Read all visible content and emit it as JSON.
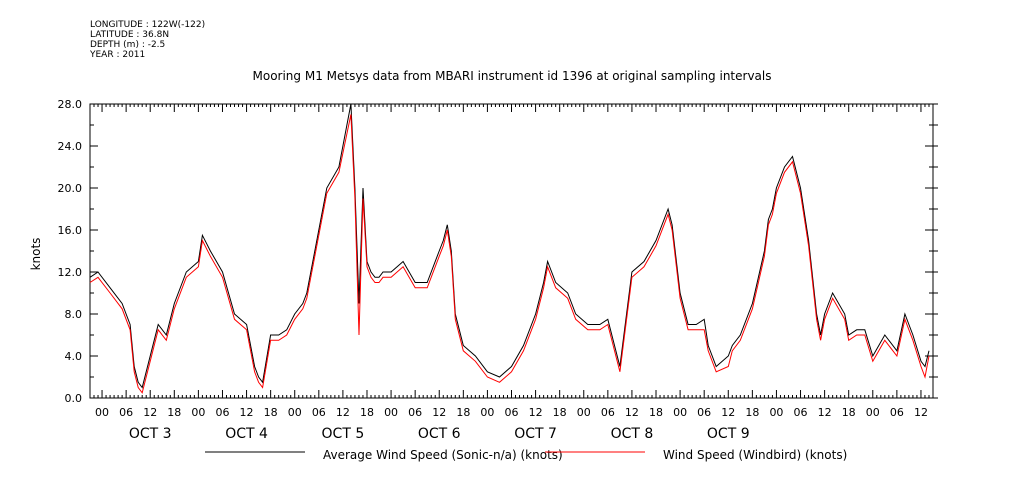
{
  "meta": {
    "longitude": "LONGITUDE : 122W(-122)",
    "latitude": "LATITUDE : 36.8N",
    "depth": "DEPTH (m) : -2.5",
    "year": "YEAR : 2011"
  },
  "chart_data": {
    "type": "line",
    "title": "Mooring M1 Metsys data from MBARI instrument id 1396 at original sampling intervals",
    "ylabel": "knots",
    "xlabel": "",
    "ylim": [
      0,
      28
    ],
    "xlim_hours": [
      -3,
      207
    ],
    "yticks": [
      "0.0",
      "4.0",
      "8.0",
      "12.0",
      "16.0",
      "20.0",
      "24.0",
      "28.0"
    ],
    "hour_ticks": [
      "00",
      "06",
      "12",
      "18"
    ],
    "days": [
      "OCT 3",
      "OCT 4",
      "OCT 5",
      "OCT 6",
      "OCT 7",
      "OCT 8",
      "OCT 9"
    ],
    "x_unit": "hours since OCT 3 00:00",
    "series": [
      {
        "name": "Average Wind Speed (Sonic-n/a) (knots)",
        "color": "#000000",
        "x": [
          -3,
          -1,
          2,
          5,
          7,
          8,
          9,
          10,
          11,
          12,
          14,
          16,
          18,
          21,
          24,
          25,
          27,
          30,
          33,
          36,
          38,
          39,
          40,
          42,
          44,
          46,
          48,
          50,
          51,
          54,
          56,
          59,
          62,
          63,
          64,
          65,
          66,
          67,
          68,
          69,
          70,
          72,
          75,
          78,
          81,
          84,
          85,
          86,
          87,
          88,
          90,
          93,
          96,
          99,
          102,
          105,
          108,
          110,
          111,
          113,
          116,
          118,
          121,
          124,
          126,
          129,
          132,
          135,
          138,
          141,
          142,
          144,
          146,
          148,
          150,
          151,
          153,
          156,
          157,
          159,
          162,
          165,
          166,
          167,
          168,
          170,
          172,
          174,
          176,
          178,
          179,
          180,
          182,
          185,
          186,
          188,
          190,
          192,
          195,
          198,
          200,
          202,
          204,
          205,
          206
        ],
        "y": [
          11.5,
          12,
          10.5,
          9,
          7,
          3,
          1.5,
          1,
          2.5,
          4,
          7,
          6,
          9,
          12,
          13,
          15.5,
          14,
          12,
          8,
          7,
          3,
          2,
          1.5,
          6,
          6,
          6.5,
          8,
          9,
          10,
          16,
          20,
          22,
          28,
          20,
          9,
          20,
          13,
          12,
          11.5,
          11.5,
          12,
          12,
          13,
          11,
          11,
          14,
          15,
          16.5,
          14,
          8,
          5,
          4,
          2.5,
          2,
          3,
          5,
          8,
          11,
          13,
          11,
          10,
          8,
          7,
          7,
          7.5,
          3,
          12,
          13,
          15,
          18,
          16.5,
          10,
          7,
          7,
          7.5,
          5,
          3,
          4,
          5,
          6,
          9,
          14,
          17,
          18,
          20,
          22,
          23,
          20,
          15,
          8,
          6,
          8,
          10,
          8,
          6,
          6.5,
          6.5,
          4,
          6,
          4.5,
          8,
          6,
          3.5,
          3,
          4.5
        ]
      },
      {
        "name": "Wind Speed (Windbird) (knots)",
        "color": "#ff0000",
        "x": [
          -3,
          -1,
          2,
          5,
          7,
          8,
          9,
          10,
          11,
          12,
          14,
          16,
          18,
          21,
          24,
          25,
          27,
          30,
          33,
          36,
          38,
          39,
          40,
          42,
          44,
          46,
          48,
          50,
          51,
          54,
          56,
          59,
          62,
          63,
          64,
          65,
          66,
          67,
          68,
          69,
          70,
          72,
          75,
          78,
          81,
          84,
          85,
          86,
          87,
          88,
          90,
          93,
          96,
          99,
          102,
          105,
          108,
          110,
          111,
          113,
          116,
          118,
          121,
          124,
          126,
          129,
          132,
          135,
          138,
          141,
          142,
          144,
          146,
          148,
          150,
          151,
          153,
          156,
          157,
          159,
          162,
          165,
          166,
          167,
          168,
          170,
          172,
          174,
          176,
          178,
          179,
          180,
          182,
          185,
          186,
          188,
          190,
          192,
          195,
          198,
          200,
          202,
          204,
          205,
          206
        ],
        "y": [
          11,
          11.5,
          10,
          8.5,
          6.5,
          2.5,
          1,
          0.5,
          2,
          3.5,
          6.5,
          5.5,
          8.5,
          11.5,
          12.5,
          15,
          13.5,
          11.5,
          7.5,
          6.5,
          2.5,
          1.5,
          1,
          5.5,
          5.5,
          6,
          7.5,
          8.5,
          9.5,
          15.5,
          19.5,
          21.5,
          27,
          19,
          6,
          19,
          12.5,
          11.5,
          11,
          11,
          11.5,
          11.5,
          12.5,
          10.5,
          10.5,
          13.5,
          14.5,
          16,
          13.5,
          7.5,
          4.5,
          3.5,
          2,
          1.5,
          2.5,
          4.5,
          7.5,
          10.5,
          12.5,
          10.5,
          9.5,
          7.5,
          6.5,
          6.5,
          7,
          2.5,
          11.5,
          12.5,
          14.5,
          17.5,
          16,
          9.5,
          6.5,
          6.5,
          6.5,
          4.5,
          2.5,
          3,
          4.5,
          5.5,
          8.5,
          13.5,
          16.5,
          17.5,
          19.5,
          21.5,
          22.5,
          19.5,
          14.5,
          7.5,
          5.5,
          7.5,
          9.5,
          7.5,
          5.5,
          6,
          6,
          3.5,
          5.5,
          4,
          7.5,
          5.5,
          3,
          2,
          4
        ]
      }
    ],
    "legend_placement": "bottom",
    "grid": false
  }
}
